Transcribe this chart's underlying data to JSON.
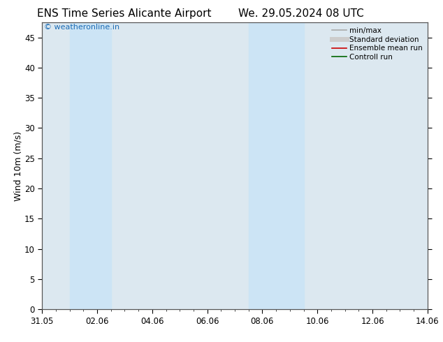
{
  "title_left": "ENS Time Series Alicante Airport",
  "title_right": "We. 29.05.2024 08 UTC",
  "ylabel": "Wind 10m (m/s)",
  "watermark": "© weatheronline.in",
  "background_color": "#ffffff",
  "plot_bg_color": "#dce8f0",
  "x_start": 0,
  "x_end": 14,
  "y_min": 0,
  "y_max": 47.5,
  "yticks": [
    0,
    5,
    10,
    15,
    20,
    25,
    30,
    35,
    40,
    45
  ],
  "xtick_labels": [
    "31.05",
    "02.06",
    "04.06",
    "06.06",
    "08.06",
    "10.06",
    "12.06",
    "14.06"
  ],
  "xtick_positions": [
    0,
    2,
    4,
    6,
    8,
    10,
    12,
    14
  ],
  "shaded_bands": [
    {
      "x_start": 1.0,
      "x_end": 2.5,
      "color": "#cce4f5"
    },
    {
      "x_start": 7.5,
      "x_end": 9.5,
      "color": "#cce4f5"
    }
  ],
  "legend_items": [
    {
      "label": "min/max",
      "color": "#aaaaaa",
      "linestyle": "-",
      "linewidth": 1.2
    },
    {
      "label": "Standard deviation",
      "color": "#cccccc",
      "linestyle": "-",
      "linewidth": 5
    },
    {
      "label": "Ensemble mean run",
      "color": "#cc0000",
      "linestyle": "-",
      "linewidth": 1.2
    },
    {
      "label": "Controll run",
      "color": "#006600",
      "linestyle": "-",
      "linewidth": 1.2
    }
  ],
  "tick_fontsize": 8.5,
  "label_fontsize": 9,
  "title_fontsize": 11,
  "watermark_color": "#1a6bb5",
  "watermark_fontsize": 8,
  "spine_color": "#555555"
}
